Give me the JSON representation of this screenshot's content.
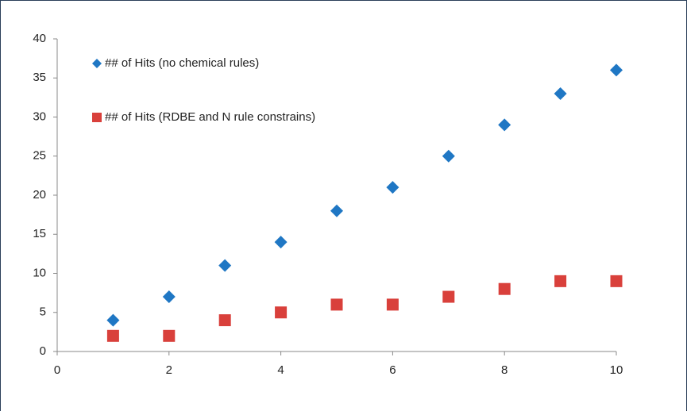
{
  "chart_data": {
    "type": "scatter",
    "x": [
      1,
      2,
      3,
      4,
      5,
      6,
      7,
      8,
      9,
      10
    ],
    "series": [
      {
        "name": "## of Hits (no chemical rules)",
        "color": "#1f77c4",
        "marker": "diamond",
        "values": [
          4,
          7,
          11,
          14,
          18,
          21,
          25,
          29,
          33,
          36
        ]
      },
      {
        "name": "## of Hits (RDBE and N rule constrains)",
        "color": "#d9403b",
        "marker": "square",
        "values": [
          2,
          2,
          4,
          5,
          6,
          6,
          7,
          8,
          9,
          9
        ]
      }
    ],
    "xlim": [
      0,
      10
    ],
    "xticks": [
      0,
      2,
      4,
      6,
      8,
      10
    ],
    "ylim": [
      0,
      40
    ],
    "yticks": [
      0,
      5,
      10,
      15,
      20,
      25,
      30,
      35,
      40
    ],
    "grid": false,
    "legend": "top-left"
  }
}
